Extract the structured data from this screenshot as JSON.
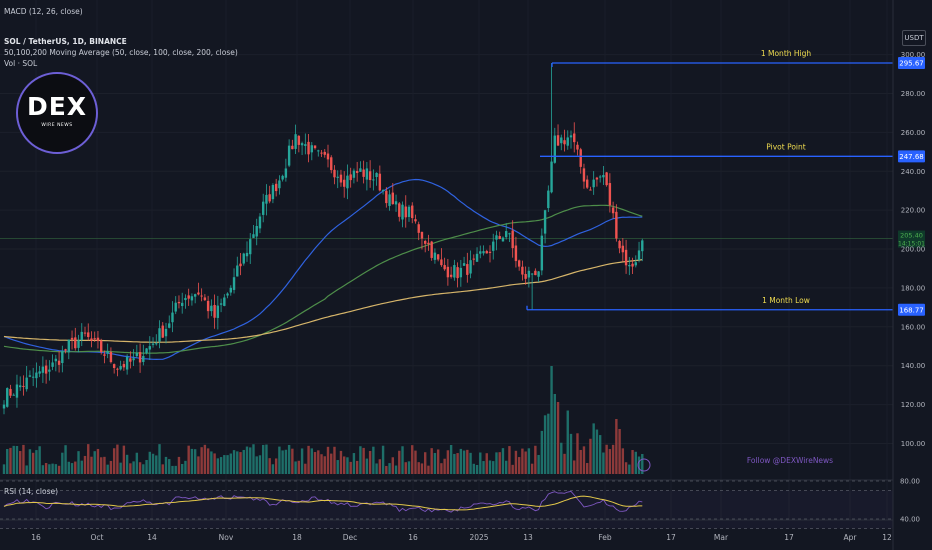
{
  "header": {
    "indicator_top": "MACD (12, 26, close)",
    "symbol_line": "SOL / TetherUS, 1D, BINANCE",
    "ma_line": "50,100,200 Moving Average (50, close, 100, close, 200, close)",
    "vol_line": "Vol · SOL",
    "rsi_line": "RSI (14, close)",
    "currency": "USDT"
  },
  "logo": {
    "text": "DEX",
    "subtext": "WIRE NEWS"
  },
  "watermark": "Follow @DEXWireNews",
  "colors": {
    "background": "#131722",
    "up": "#26a69a",
    "down": "#ef5350",
    "ma50": "#2f62e0",
    "ma100": "#4e8e4a",
    "ma200": "#d6b56a",
    "level": "#2962ff",
    "level_text": "#f0dc50",
    "rsi": "#7e57c2",
    "rsi_ma": "#e3c84a"
  },
  "chart_data": {
    "type": "candlestick",
    "symbol": "SOL / TetherUS",
    "timeframe": "1D",
    "exchange": "BINANCE",
    "y_ticks": [
      100,
      120,
      140,
      160,
      180,
      200,
      220,
      240,
      260,
      280,
      300
    ],
    "x_ticks": [
      "16",
      "Oct",
      "14",
      "Nov",
      "18",
      "Dec",
      "16",
      "2025",
      "13",
      "Feb",
      "17",
      "Mar",
      "17",
      "Apr",
      "12"
    ],
    "levels": [
      {
        "name": "1 Month High",
        "value": 295.67,
        "label": "295.67"
      },
      {
        "name": "Pivot Point",
        "value": 247.68,
        "label": "247.68"
      },
      {
        "name": "1 Month Low",
        "value": 168.77,
        "label": "168.77"
      }
    ],
    "last_price_label": "205.40",
    "countdown_label": "14:15:01",
    "price_anchors": [
      [
        0,
        124
      ],
      [
        8,
        133
      ],
      [
        15,
        140
      ],
      [
        20,
        150
      ],
      [
        25,
        155
      ],
      [
        30,
        148
      ],
      [
        35,
        140
      ],
      [
        40,
        142
      ],
      [
        45,
        150
      ],
      [
        50,
        160
      ],
      [
        55,
        175
      ],
      [
        60,
        178
      ],
      [
        65,
        165
      ],
      [
        70,
        180
      ],
      [
        75,
        200
      ],
      [
        80,
        222
      ],
      [
        85,
        236
      ],
      [
        90,
        258
      ],
      [
        95,
        250
      ],
      [
        100,
        244
      ],
      [
        105,
        236
      ],
      [
        110,
        240
      ],
      [
        115,
        236
      ],
      [
        120,
        222
      ],
      [
        125,
        218
      ],
      [
        130,
        205
      ],
      [
        135,
        190
      ],
      [
        140,
        188
      ],
      [
        145,
        192
      ],
      [
        150,
        200
      ],
      [
        155,
        210
      ],
      [
        160,
        185
      ],
      [
        165,
        190
      ],
      [
        170,
        255
      ],
      [
        175,
        258
      ],
      [
        180,
        232
      ],
      [
        185,
        238
      ],
      [
        190,
        202
      ],
      [
        193,
        190
      ],
      [
        196,
        198
      ],
      [
        197,
        205
      ]
    ],
    "ma_series": [
      {
        "name": "MA50",
        "period": 50
      },
      {
        "name": "MA100",
        "period": 100
      },
      {
        "name": "MA200",
        "period": 200
      }
    ],
    "rsi_levels": [
      40,
      80
    ]
  }
}
